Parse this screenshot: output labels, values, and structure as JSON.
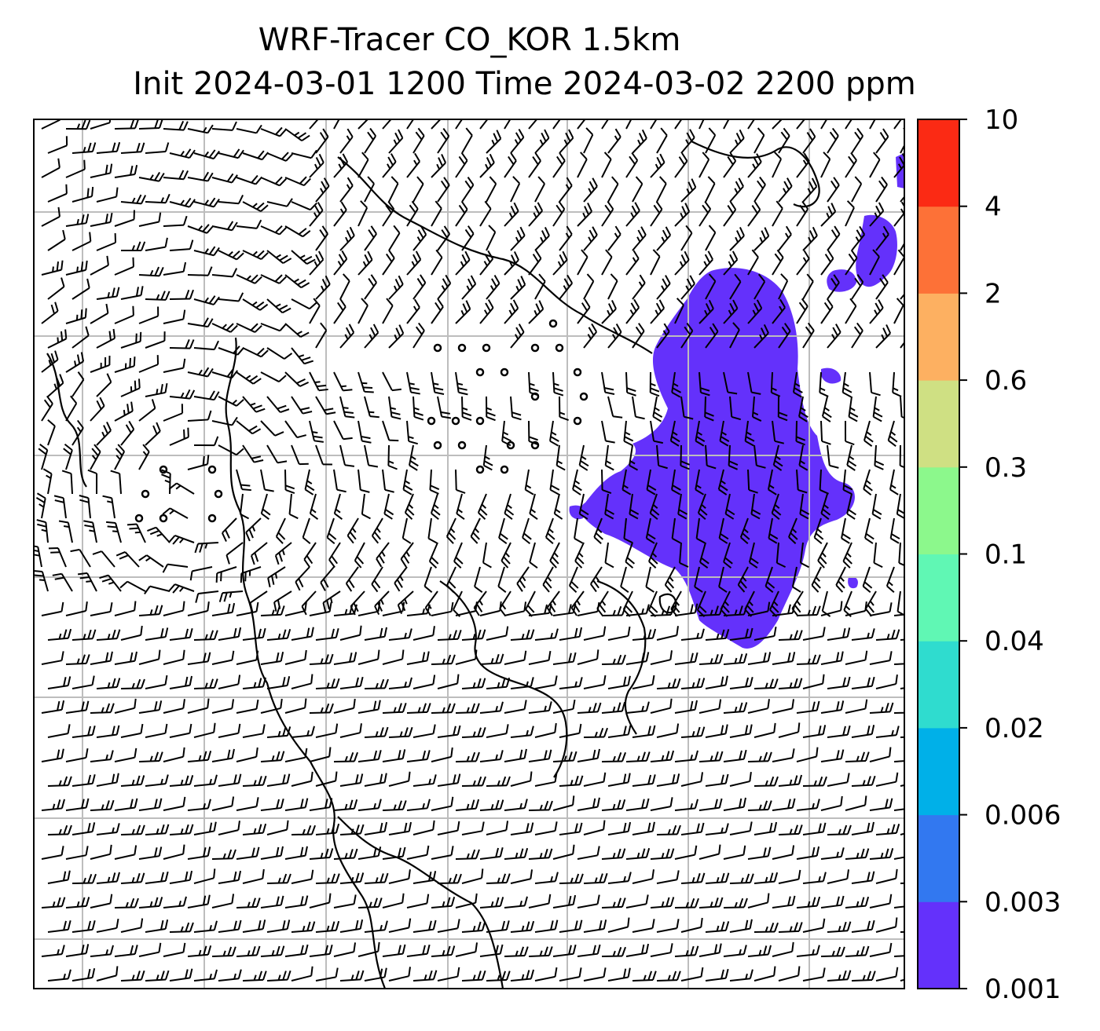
{
  "title": {
    "line1": "WRF-Tracer CO_KOR 1.5km",
    "line2": "Init 2024-03-01 1200 Time 2024-03-02 2200 ppm"
  },
  "colorbar": {
    "levels": [
      "0.001",
      "0.003",
      "0.006",
      "0.02",
      "0.04",
      "0.1",
      "0.3",
      "0.6",
      "2",
      "4",
      "10"
    ],
    "colors": [
      "#6431fb",
      "#3278f0",
      "#00b0e8",
      "#2fdccf",
      "#60f7b4",
      "#8cf88c",
      "#cfe083",
      "#fdb061",
      "#fd7137",
      "#fb2a14"
    ]
  },
  "map": {
    "plume_color": "#6431fb",
    "grid_color": "#bdbdbd",
    "barb_color": "#000000"
  }
}
